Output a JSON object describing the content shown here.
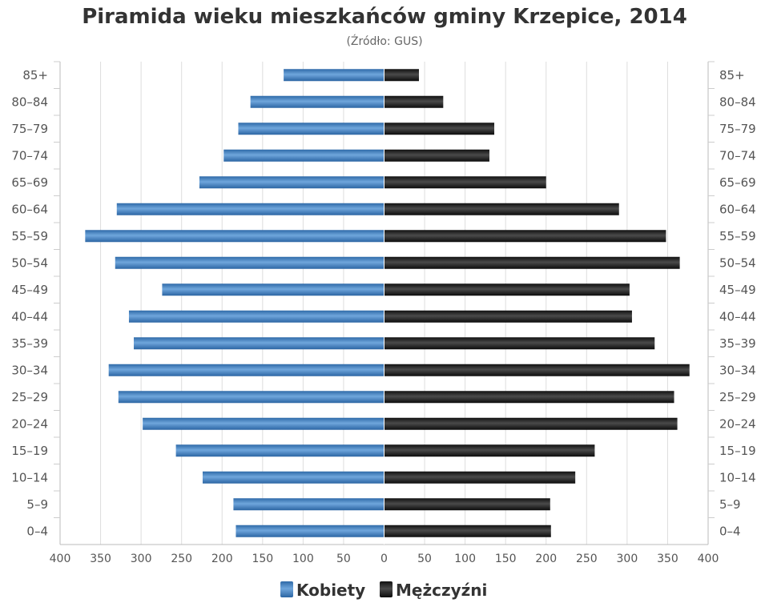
{
  "chart_data": {
    "type": "bar",
    "orientation": "horizontal",
    "layout": "population-pyramid",
    "title": "Piramida wieku mieszkańców gminy Krzepice, 2014",
    "subtitle": "(Źródło: GUS)",
    "categories": [
      "85+",
      "80-84",
      "75-79",
      "70-74",
      "65-69",
      "60-64",
      "55-59",
      "50-54",
      "45-49",
      "40-44",
      "35-39",
      "30-34",
      "25-29",
      "20-24",
      "15-19",
      "10-14",
      "5-9",
      "0-4"
    ],
    "series": [
      {
        "name": "Kobiety",
        "side": "left",
        "color": "#3d78b6",
        "values": [
          124,
          165,
          180,
          198,
          228,
          330,
          369,
          332,
          274,
          315,
          309,
          340,
          328,
          298,
          257,
          224,
          186,
          183
        ]
      },
      {
        "name": "Mężczyźni",
        "side": "right",
        "color": "#1a1a1a",
        "values": [
          43,
          73,
          136,
          130,
          200,
          290,
          348,
          365,
          303,
          306,
          334,
          377,
          358,
          362,
          260,
          236,
          205,
          206
        ]
      }
    ],
    "xlim": [
      -400,
      400
    ],
    "xticks": [
      "400",
      "350",
      "300",
      "250",
      "200",
      "150",
      "100",
      "50",
      "0",
      "50",
      "100",
      "150",
      "200",
      "250",
      "300",
      "350",
      "400"
    ],
    "grid": true,
    "legend": "bottom-center",
    "xlabel": "",
    "ylabel": ""
  }
}
